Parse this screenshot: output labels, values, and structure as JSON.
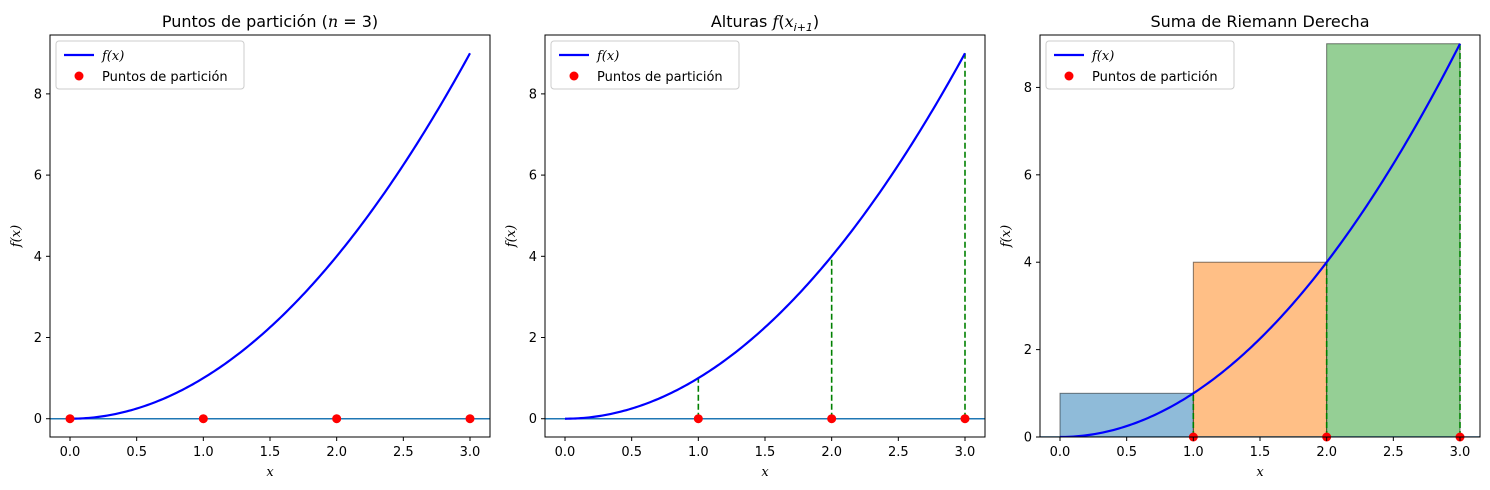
{
  "colors": {
    "curve": "#0000ff",
    "points": "#ff0000",
    "baseline": "#1f77b4",
    "drop_lines": "#008000",
    "rect_fills": [
      "#1f77b4",
      "#ff7f0e",
      "#2ca02c"
    ],
    "rect_edge": "#000000"
  },
  "chart_data": [
    {
      "type": "line",
      "title": "Puntos de partición (n = 3)",
      "xlabel": "x",
      "ylabel": "f(x)",
      "xlim": [
        -0.15,
        3.15
      ],
      "ylim": [
        -0.45,
        9.45
      ],
      "xticks": [
        0.0,
        0.5,
        1.0,
        1.5,
        2.0,
        2.5,
        3.0
      ],
      "xtick_labels": [
        "0.0",
        "0.5",
        "1.0",
        "1.5",
        "2.0",
        "2.5",
        "3.0"
      ],
      "yticks": [
        0,
        2,
        4,
        6,
        8
      ],
      "ytick_labels": [
        "0",
        "2",
        "4",
        "6",
        "8"
      ],
      "curve": {
        "function": "x^2",
        "x_range": [
          0,
          3
        ]
      },
      "baseline_y": 0,
      "points": {
        "x": [
          0,
          1,
          2,
          3
        ],
        "y": [
          0,
          0,
          0,
          0
        ]
      },
      "drop_lines": [],
      "rectangles": [],
      "legend": {
        "placement": "upper-left",
        "entries": [
          "f(x)",
          "Puntos de partición"
        ]
      }
    },
    {
      "type": "line",
      "title": "Alturas f(x_{i+1})",
      "xlabel": "x",
      "ylabel": "f(x)",
      "xlim": [
        -0.15,
        3.15
      ],
      "ylim": [
        -0.45,
        9.45
      ],
      "xticks": [
        0.0,
        0.5,
        1.0,
        1.5,
        2.0,
        2.5,
        3.0
      ],
      "xtick_labels": [
        "0.0",
        "0.5",
        "1.0",
        "1.5",
        "2.0",
        "2.5",
        "3.0"
      ],
      "yticks": [
        0,
        2,
        4,
        6,
        8
      ],
      "ytick_labels": [
        "0",
        "2",
        "4",
        "6",
        "8"
      ],
      "curve": {
        "function": "x^2",
        "x_range": [
          0,
          3
        ]
      },
      "baseline_y": 0,
      "points": {
        "x": [
          1,
          2,
          3
        ],
        "y": [
          0,
          0,
          0
        ]
      },
      "drop_lines": [
        {
          "x": 1,
          "y": 1
        },
        {
          "x": 2,
          "y": 4
        },
        {
          "x": 3,
          "y": 9
        }
      ],
      "rectangles": [],
      "legend": {
        "placement": "upper-left",
        "entries": [
          "f(x)",
          "Puntos de partición"
        ]
      }
    },
    {
      "type": "bar",
      "title": "Suma de Riemann Derecha",
      "xlabel": "x",
      "ylabel": "f(x)",
      "xlim": [
        -0.15,
        3.15
      ],
      "ylim": [
        0,
        9.2
      ],
      "xticks": [
        0.0,
        0.5,
        1.0,
        1.5,
        2.0,
        2.5,
        3.0
      ],
      "xtick_labels": [
        "0.0",
        "0.5",
        "1.0",
        "1.5",
        "2.0",
        "2.5",
        "3.0"
      ],
      "yticks": [
        0,
        2,
        4,
        6,
        8
      ],
      "ytick_labels": [
        "0",
        "2",
        "4",
        "6",
        "8"
      ],
      "curve": {
        "function": "x^2",
        "x_range": [
          0,
          3
        ]
      },
      "baseline_y": 0,
      "points": {
        "x": [
          1,
          2,
          3
        ],
        "y": [
          0,
          0,
          0
        ]
      },
      "drop_lines": [
        {
          "x": 1,
          "y": 1
        },
        {
          "x": 2,
          "y": 4
        },
        {
          "x": 3,
          "y": 9
        }
      ],
      "rectangles": [
        {
          "x0": 0,
          "x1": 1,
          "height": 1
        },
        {
          "x0": 1,
          "x1": 2,
          "height": 4
        },
        {
          "x0": 2,
          "x1": 3,
          "height": 9
        }
      ],
      "legend": {
        "placement": "upper-left",
        "entries": [
          "f(x)",
          "Puntos de partición"
        ]
      }
    }
  ]
}
